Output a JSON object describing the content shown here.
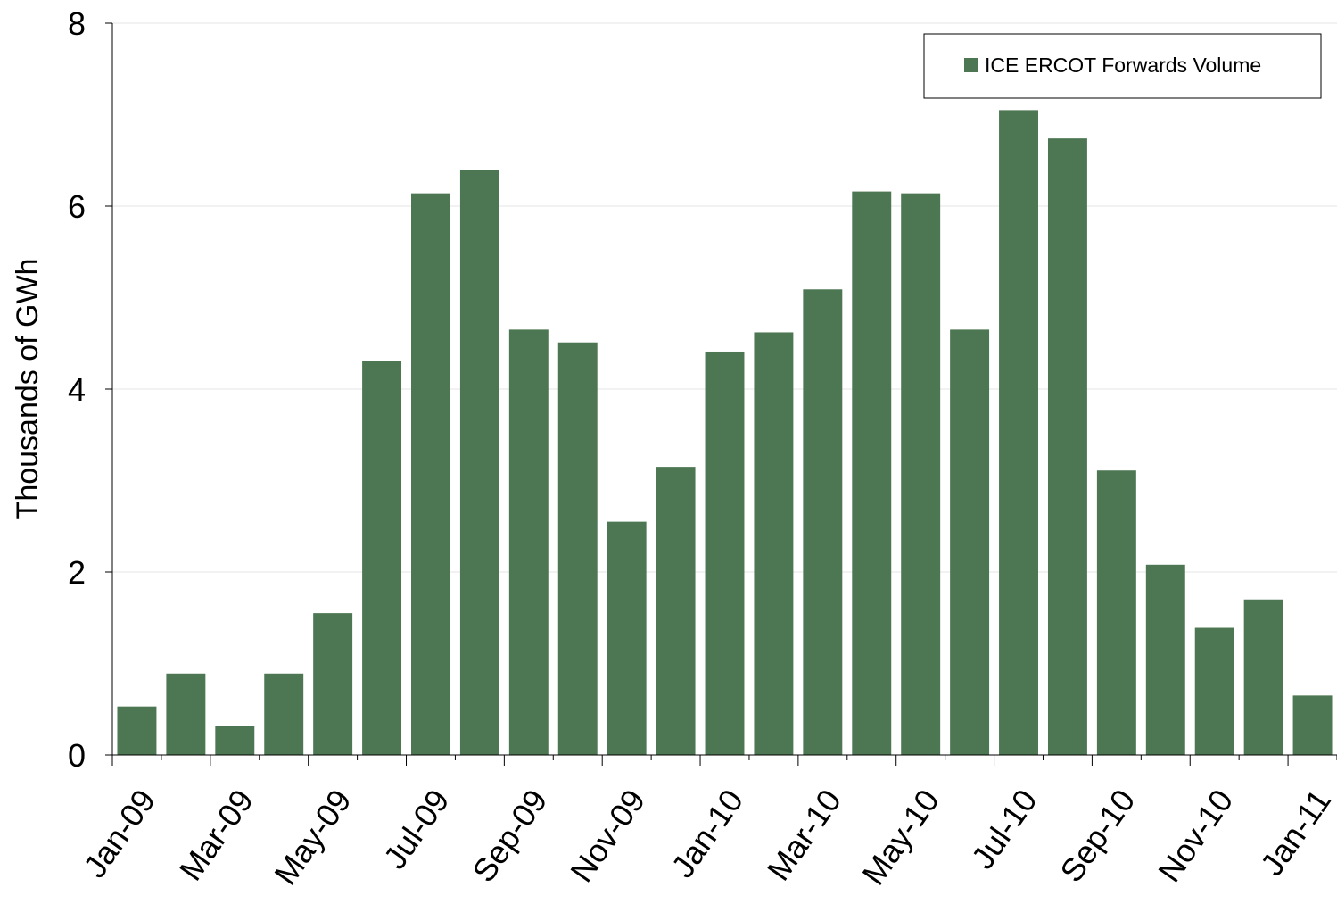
{
  "chart_data": {
    "type": "bar",
    "title": "",
    "xlabel": "",
    "ylabel": "Thousands of GWh",
    "ylim": [
      0,
      8
    ],
    "yticks": [
      "0",
      "2",
      "4",
      "6",
      "8"
    ],
    "grid": true,
    "legend_position": "top-right",
    "categories": [
      "Jan-09",
      "Feb-09",
      "Mar-09",
      "Apr-09",
      "May-09",
      "Jun-09",
      "Jul-09",
      "Aug-09",
      "Sep-09",
      "Oct-09",
      "Nov-09",
      "Dec-09",
      "Jan-10",
      "Feb-10",
      "Mar-10",
      "Apr-10",
      "May-10",
      "Jun-10",
      "Jul-10",
      "Aug-10",
      "Sep-10",
      "Oct-10",
      "Nov-10",
      "Dec-10",
      "Jan-11"
    ],
    "xtick_labels": [
      "Jan-09",
      "Mar-09",
      "May-09",
      "Jul-09",
      "Sep-09",
      "Nov-09",
      "Jan-10",
      "Mar-10",
      "May-10",
      "Jul-10",
      "Sep-10",
      "Nov-10",
      "Jan-11"
    ],
    "series": [
      {
        "name": "ICE ERCOT Forwards Volume",
        "color": "#4d7752",
        "values": [
          0.53,
          0.89,
          0.32,
          0.89,
          1.55,
          4.31,
          6.14,
          6.4,
          4.65,
          4.51,
          2.55,
          3.15,
          4.41,
          4.62,
          5.09,
          6.16,
          6.14,
          4.65,
          7.05,
          6.74,
          3.11,
          2.08,
          1.39,
          1.7,
          0.65
        ]
      }
    ]
  }
}
